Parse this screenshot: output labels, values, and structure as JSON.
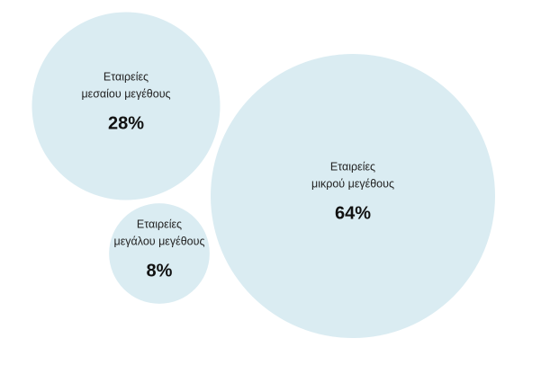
{
  "chart_data": {
    "type": "bubble",
    "categories": [
      [
        "Εταιρείες",
        "μεσαίου μεγέθους"
      ],
      [
        "Εταιρείες",
        "μικρού μεγέθους"
      ],
      [
        "Εταιρείες",
        "μεγάλου μεγέθους"
      ]
    ],
    "values": [
      28,
      64,
      8
    ],
    "value_labels": [
      "28%",
      "64%",
      "8%"
    ],
    "color": "#daecf2"
  }
}
